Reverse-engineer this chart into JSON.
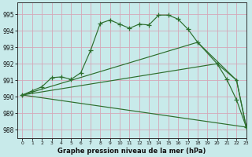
{
  "title": "Graphe pression niveau de la mer (hPa)",
  "bg_color": "#c8eaea",
  "grid_color": "#d4a8b8",
  "line_color": "#2d6e2d",
  "xlim": [
    -0.5,
    23
  ],
  "ylim": [
    987.5,
    995.7
  ],
  "yticks": [
    988,
    989,
    990,
    991,
    992,
    993,
    994,
    995
  ],
  "xticks": [
    0,
    1,
    2,
    3,
    4,
    5,
    6,
    7,
    8,
    9,
    10,
    11,
    12,
    13,
    14,
    15,
    16,
    17,
    18,
    19,
    20,
    21,
    22,
    23
  ],
  "line_main": {
    "x": [
      0,
      1,
      2,
      3,
      4,
      5,
      6,
      7,
      8,
      9,
      10,
      11,
      12,
      13,
      14,
      15,
      16,
      17,
      18,
      20,
      21,
      22,
      23
    ],
    "y": [
      990.1,
      990.35,
      990.6,
      991.15,
      991.2,
      991.05,
      991.45,
      992.8,
      994.45,
      994.65,
      994.4,
      994.15,
      994.4,
      994.35,
      994.95,
      994.95,
      994.7,
      994.1,
      993.3,
      992.0,
      991.05,
      989.8,
      988.15
    ]
  },
  "line_a": {
    "x": [
      0,
      20,
      22,
      23
    ],
    "y": [
      990.1,
      992.0,
      991.0,
      988.15
    ]
  },
  "line_b": {
    "x": [
      0,
      18,
      22,
      23
    ],
    "y": [
      990.1,
      993.3,
      991.0,
      988.15
    ]
  },
  "line_c": {
    "x": [
      0,
      23
    ],
    "y": [
      990.1,
      988.15
    ]
  }
}
